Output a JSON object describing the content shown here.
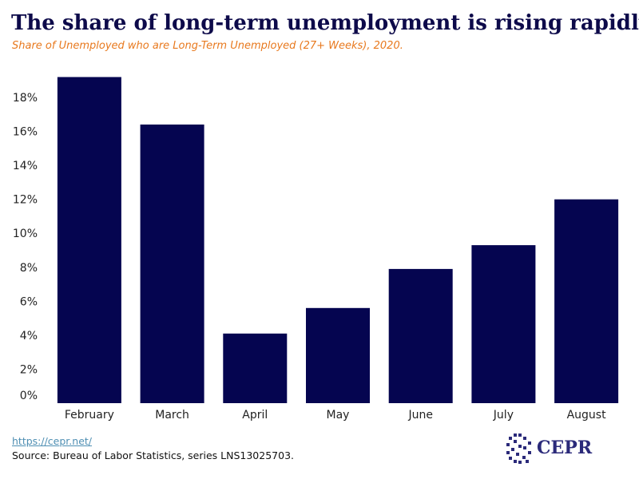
{
  "header": {
    "title": "The share of long-term unemployment is rising rapidly.",
    "subtitle": "Share of Unemployed who are Long-Term Unemployed (27+ Weeks), 2020."
  },
  "footer": {
    "link": "https://cepr.net/",
    "source": "Source: Bureau of Labor Statistics, series LNS13025703."
  },
  "logo": {
    "text": "CEPR",
    "icon": "cepr-logo-icon"
  },
  "colors": {
    "bar": "#050550",
    "title": "#0d0a4a",
    "subtitle": "#e8791e",
    "axis_text": "#222222",
    "link": "#4f8fb3",
    "logo": "#2b2a7a"
  },
  "chart_data": {
    "type": "bar",
    "categories": [
      "February",
      "March",
      "April",
      "May",
      "June",
      "July",
      "August"
    ],
    "values": [
      19.2,
      16.4,
      4.1,
      5.6,
      7.9,
      9.3,
      12.0
    ],
    "title": "The share of long-term unemployment is rising rapidly.",
    "subtitle": "Share of Unemployed who are Long-Term Unemployed (27+ Weeks), 2020.",
    "xlabel": "",
    "ylabel": "",
    "ylim": [
      0,
      19.2
    ],
    "yticks": [
      0,
      2,
      4,
      6,
      8,
      10,
      12,
      14,
      16,
      18
    ],
    "ytick_labels": [
      "0%",
      "2%",
      "4%",
      "6%",
      "8%",
      "10%",
      "12%",
      "14%",
      "16%",
      "18%"
    ],
    "grid": false,
    "legend": "none"
  }
}
